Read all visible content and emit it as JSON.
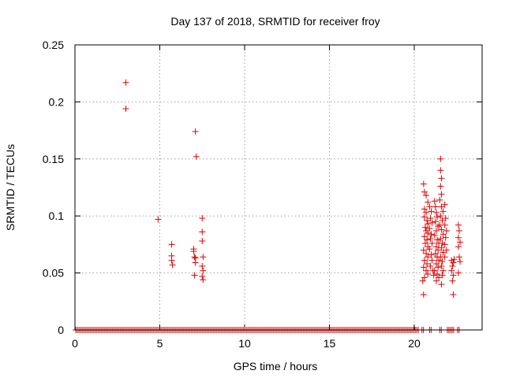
{
  "chart_data": {
    "type": "scatter",
    "title": "Day 137 of 2018, SRMTID for receiver froy",
    "xlabel": "GPS time / hours",
    "ylabel": "SRMTID / TECUs",
    "xlim": [
      0,
      24
    ],
    "ylim": [
      0,
      0.25
    ],
    "xticks": [
      0,
      5,
      10,
      15,
      20
    ],
    "xtick_labels": [
      "0",
      "5",
      "10",
      "15",
      "20"
    ],
    "yticks": [
      0,
      0.05,
      0.1,
      0.15,
      0.2,
      0.25
    ],
    "ytick_labels": [
      "0",
      "0.05",
      "0.1",
      "0.15",
      "0.2",
      "0.25"
    ],
    "grid": true,
    "marker": "+",
    "color": "#e00000",
    "series": [
      {
        "name": "SRMTID",
        "points": [
          [
            3.0,
            0.217
          ],
          [
            3.0,
            0.194
          ],
          [
            4.9,
            0.097
          ],
          [
            5.7,
            0.075
          ],
          [
            5.7,
            0.065
          ],
          [
            5.7,
            0.061
          ],
          [
            5.75,
            0.057
          ],
          [
            7.0,
            0.071
          ],
          [
            7.0,
            0.069
          ],
          [
            7.05,
            0.064
          ],
          [
            7.1,
            0.063
          ],
          [
            7.1,
            0.059
          ],
          [
            7.05,
            0.048
          ],
          [
            7.1,
            0.174
          ],
          [
            7.15,
            0.152
          ],
          [
            7.5,
            0.098
          ],
          [
            7.5,
            0.086
          ],
          [
            7.5,
            0.078
          ],
          [
            7.55,
            0.064
          ],
          [
            7.5,
            0.056
          ],
          [
            7.55,
            0.052
          ],
          [
            7.5,
            0.047
          ],
          [
            7.55,
            0.044
          ],
          [
            20.55,
            0.128
          ],
          [
            20.6,
            0.121
          ],
          [
            20.7,
            0.118
          ],
          [
            20.8,
            0.112
          ],
          [
            20.6,
            0.106
          ],
          [
            20.7,
            0.103
          ],
          [
            20.6,
            0.099
          ],
          [
            20.75,
            0.096
          ],
          [
            20.8,
            0.093
          ],
          [
            20.65,
            0.09
          ],
          [
            20.7,
            0.087
          ],
          [
            20.8,
            0.085
          ],
          [
            20.6,
            0.082
          ],
          [
            20.75,
            0.079
          ],
          [
            20.65,
            0.076
          ],
          [
            20.8,
            0.073
          ],
          [
            20.55,
            0.07
          ],
          [
            20.7,
            0.067
          ],
          [
            20.8,
            0.064
          ],
          [
            20.6,
            0.061
          ],
          [
            20.75,
            0.058
          ],
          [
            20.55,
            0.055
          ],
          [
            20.7,
            0.052
          ],
          [
            20.8,
            0.049
          ],
          [
            20.6,
            0.046
          ],
          [
            20.5,
            0.043
          ],
          [
            20.55,
            0.031
          ],
          [
            20.9,
            0.108
          ],
          [
            21.0,
            0.104
          ],
          [
            20.95,
            0.098
          ],
          [
            21.05,
            0.094
          ],
          [
            20.9,
            0.089
          ],
          [
            21.0,
            0.084
          ],
          [
            20.95,
            0.08
          ],
          [
            21.05,
            0.076
          ],
          [
            20.9,
            0.071
          ],
          [
            21.0,
            0.066
          ],
          [
            21.05,
            0.061
          ],
          [
            20.95,
            0.056
          ],
          [
            21.1,
            0.052
          ],
          [
            21.15,
            0.048
          ],
          [
            21.2,
            0.113
          ],
          [
            21.25,
            0.108
          ],
          [
            21.3,
            0.103
          ],
          [
            21.35,
            0.099
          ],
          [
            21.25,
            0.095
          ],
          [
            21.4,
            0.091
          ],
          [
            21.3,
            0.087
          ],
          [
            21.2,
            0.083
          ],
          [
            21.35,
            0.079
          ],
          [
            21.45,
            0.076
          ],
          [
            21.3,
            0.073
          ],
          [
            21.4,
            0.07
          ],
          [
            21.25,
            0.067
          ],
          [
            21.35,
            0.064
          ],
          [
            21.45,
            0.061
          ],
          [
            21.3,
            0.058
          ],
          [
            21.4,
            0.055
          ],
          [
            21.2,
            0.052
          ],
          [
            21.35,
            0.049
          ],
          [
            21.45,
            0.046
          ],
          [
            21.3,
            0.043
          ],
          [
            21.55,
            0.15
          ],
          [
            21.55,
            0.14
          ],
          [
            21.6,
            0.133
          ],
          [
            21.55,
            0.126
          ],
          [
            21.6,
            0.119
          ],
          [
            21.5,
            0.114
          ],
          [
            21.6,
            0.108
          ],
          [
            21.7,
            0.104
          ],
          [
            21.55,
            0.1
          ],
          [
            21.65,
            0.096
          ],
          [
            21.5,
            0.092
          ],
          [
            21.6,
            0.088
          ],
          [
            21.7,
            0.084
          ],
          [
            21.55,
            0.08
          ],
          [
            21.65,
            0.076
          ],
          [
            21.6,
            0.072
          ],
          [
            21.7,
            0.068
          ],
          [
            21.55,
            0.064
          ],
          [
            21.65,
            0.06
          ],
          [
            21.6,
            0.056
          ],
          [
            21.7,
            0.052
          ],
          [
            21.65,
            0.048
          ],
          [
            21.6,
            0.04
          ],
          [
            21.8,
            0.11
          ],
          [
            21.85,
            0.098
          ],
          [
            21.8,
            0.092
          ],
          [
            21.9,
            0.087
          ],
          [
            21.85,
            0.081
          ],
          [
            21.8,
            0.075
          ],
          [
            21.9,
            0.07
          ],
          [
            21.8,
            0.064
          ],
          [
            22.2,
            0.061
          ],
          [
            22.3,
            0.059
          ],
          [
            22.25,
            0.056
          ],
          [
            22.35,
            0.062
          ],
          [
            22.2,
            0.052
          ],
          [
            22.3,
            0.048
          ],
          [
            22.25,
            0.043
          ],
          [
            22.3,
            0.031
          ],
          [
            22.6,
            0.092
          ],
          [
            22.65,
            0.087
          ],
          [
            22.6,
            0.081
          ],
          [
            22.7,
            0.077
          ],
          [
            22.6,
            0.073
          ],
          [
            22.65,
            0.064
          ],
          [
            22.7,
            0.06
          ],
          [
            22.6,
            0.05
          ]
        ]
      },
      {
        "name": "zero-baseline",
        "value": 0,
        "ranges": [
          [
            0.05,
            20.3
          ],
          [
            20.45,
            20.55
          ],
          [
            20.9,
            21.0
          ],
          [
            21.5,
            21.6
          ],
          [
            21.95,
            22.4
          ],
          [
            22.55,
            22.7
          ]
        ]
      }
    ]
  }
}
